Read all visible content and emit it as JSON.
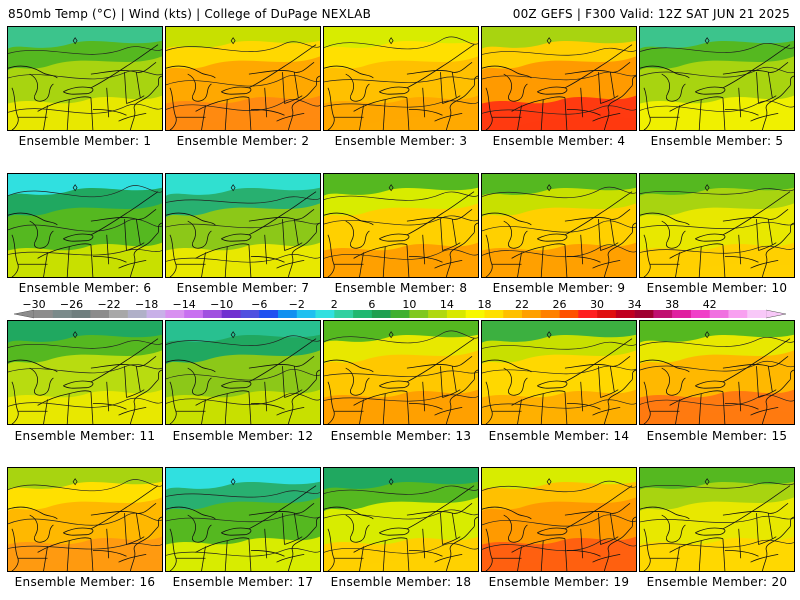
{
  "header": {
    "left": "850mb Temp (°C) | Wind (kts) | College of DuPage NEXLAB",
    "right": "00Z GEFS | F300 Valid: 12Z SAT JUN 21 2025"
  },
  "members": [
    {
      "label": "Ensemble Member: 1",
      "palette": [
        "#3cc48c",
        "#55b820",
        "#a8d410",
        "#e8e800"
      ]
    },
    {
      "label": "Ensemble Member: 2",
      "palette": [
        "#c8e000",
        "#ffd800",
        "#ffa800",
        "#ff8a10"
      ]
    },
    {
      "label": "Ensemble Member: 3",
      "palette": [
        "#d8ec00",
        "#ffe000",
        "#ffc000",
        "#ffa800"
      ]
    },
    {
      "label": "Ensemble Member: 4",
      "palette": [
        "#a8d410",
        "#ffd000",
        "#ff9a00",
        "#ff3a10"
      ]
    },
    {
      "label": "Ensemble Member: 5",
      "palette": [
        "#3cc48c",
        "#55b820",
        "#a8d410",
        "#f0f000"
      ]
    },
    {
      "label": "Ensemble Member: 6",
      "palette": [
        "#30e0e0",
        "#20a860",
        "#55b820",
        "#c8e000"
      ]
    },
    {
      "label": "Ensemble Member: 7",
      "palette": [
        "#30e0d0",
        "#28b070",
        "#8cc818",
        "#e8e800"
      ]
    },
    {
      "label": "Ensemble Member: 8",
      "palette": [
        "#55b820",
        "#d8ec00",
        "#ffd000",
        "#ffa000"
      ]
    },
    {
      "label": "Ensemble Member: 9",
      "palette": [
        "#55b820",
        "#c8e000",
        "#ffd000",
        "#ffa000"
      ]
    },
    {
      "label": "Ensemble Member: 10",
      "palette": [
        "#55b820",
        "#a8d410",
        "#e8e800",
        "#ffd000"
      ]
    },
    {
      "label": "Ensemble Member: 11",
      "palette": [
        "#20a860",
        "#55b820",
        "#b8dc10",
        "#e8e800"
      ]
    },
    {
      "label": "Ensemble Member: 12",
      "palette": [
        "#28c090",
        "#20a860",
        "#8cc818",
        "#c8e000"
      ]
    },
    {
      "label": "Ensemble Member: 13",
      "palette": [
        "#55b820",
        "#e8e800",
        "#ffc800",
        "#ffa000"
      ]
    },
    {
      "label": "Ensemble Member: 14",
      "palette": [
        "#3cb040",
        "#c8e000",
        "#ffd800",
        "#ffb000"
      ]
    },
    {
      "label": "Ensemble Member: 15",
      "palette": [
        "#55b820",
        "#e8e800",
        "#ffb800",
        "#ff7a10"
      ]
    },
    {
      "label": "Ensemble Member: 16",
      "palette": [
        "#a8d410",
        "#ffe000",
        "#ffb800",
        "#ff9a10"
      ]
    },
    {
      "label": "Ensemble Member: 17",
      "palette": [
        "#30e0e0",
        "#28b070",
        "#55b820",
        "#d8ec00"
      ]
    },
    {
      "label": "Ensemble Member: 18",
      "palette": [
        "#20a860",
        "#55b820",
        "#d8ec00",
        "#ffd000"
      ]
    },
    {
      "label": "Ensemble Member: 19",
      "palette": [
        "#d8ec00",
        "#ffc000",
        "#ff9a00",
        "#ff6010"
      ]
    },
    {
      "label": "Ensemble Member: 20",
      "palette": [
        "#55b820",
        "#a8d410",
        "#e8e800",
        "#ffd800"
      ]
    }
  ],
  "colorbar": {
    "labels": [
      "−30",
      "−26",
      "−22",
      "−18",
      "−14",
      "−10",
      "−6",
      "−2",
      "2",
      "6",
      "10",
      "14",
      "18",
      "22",
      "26",
      "30",
      "34",
      "38",
      "42"
    ],
    "colors": [
      "#8c8c8c",
      "#7a8a8a",
      "#6e7e7e",
      "#8c8c8c",
      "#a8a8a8",
      "#b0b0c8",
      "#c8b0e8",
      "#d890f0",
      "#c870f0",
      "#a050e0",
      "#7030d0",
      "#5050e0",
      "#2050f0",
      "#1090f0",
      "#20c0f0",
      "#30e0e0",
      "#30d0a0",
      "#20b870",
      "#20a050",
      "#40b030",
      "#80c820",
      "#b0d810",
      "#d8e800",
      "#f8f800",
      "#ffe000",
      "#ffc000",
      "#ffa000",
      "#ff8000",
      "#ff5000",
      "#ff2020",
      "#e01010",
      "#c00020",
      "#a00030",
      "#c01070",
      "#e020a0",
      "#f040c8",
      "#f070e0",
      "#f8a0f0",
      "#f8c8f8"
    ]
  }
}
